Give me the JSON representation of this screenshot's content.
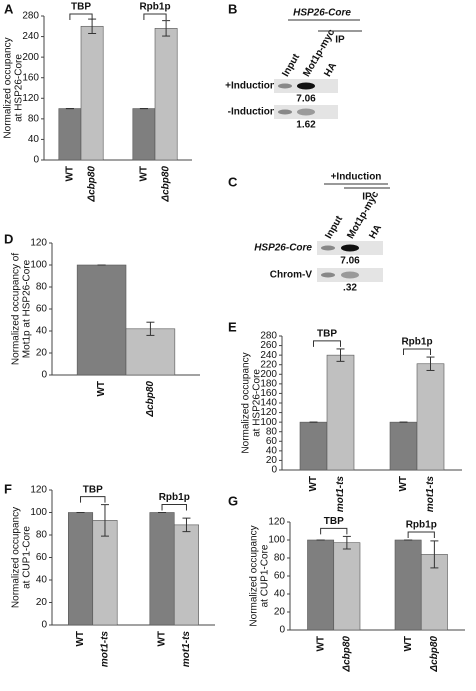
{
  "chart_data": [
    {
      "type": "bar",
      "panel": "A",
      "y_label": [
        "Normalized occupancy",
        "at HSP26-Core"
      ],
      "ylim": [
        0,
        280
      ],
      "yticks": [
        0,
        40,
        80,
        120,
        160,
        200,
        240,
        280
      ],
      "groups": [
        "TBP",
        "Rpb1p"
      ],
      "series": [
        {
          "name": "WT",
          "color": "#7f7f7f",
          "values": [
            100,
            100
          ],
          "errors": [
            0,
            0
          ]
        },
        {
          "name": "Δcbp80",
          "color": "#c0c0c0",
          "values": [
            260,
            256
          ],
          "errors": [
            14,
            15
          ]
        }
      ]
    },
    {
      "type": "bar",
      "panel": "D",
      "y_label": [
        "Normalized occupancy of",
        "Mot1p at HSP26-Core"
      ],
      "ylim": [
        0,
        120
      ],
      "yticks": [
        0,
        20,
        40,
        60,
        80,
        100,
        120
      ],
      "series": [
        {
          "name": "WT",
          "color": "#7f7f7f",
          "values": [
            100
          ],
          "errors": [
            0
          ]
        },
        {
          "name": "Δcbp80",
          "color": "#c0c0c0",
          "values": [
            42
          ],
          "errors": [
            6
          ]
        }
      ]
    },
    {
      "type": "bar",
      "panel": "E",
      "y_label": [
        "Normalized occupancy",
        "at HSP26-Core"
      ],
      "ylim": [
        0,
        280
      ],
      "yticks": [
        0,
        20,
        40,
        60,
        80,
        100,
        120,
        140,
        160,
        180,
        200,
        220,
        240,
        260,
        280
      ],
      "groups": [
        "TBP",
        "Rpb1p"
      ],
      "series": [
        {
          "name": "WT",
          "color": "#7f7f7f",
          "values": [
            100,
            100
          ],
          "errors": [
            0,
            0
          ]
        },
        {
          "name": "mot1-ts",
          "color": "#c0c0c0",
          "values": [
            240,
            222
          ],
          "errors": [
            13,
            14
          ]
        }
      ]
    },
    {
      "type": "bar",
      "panel": "F",
      "y_label": [
        "Normalized occupancy",
        "at CUP1-Core"
      ],
      "ylim": [
        0,
        120
      ],
      "yticks": [
        0,
        20,
        40,
        60,
        80,
        100,
        120
      ],
      "groups": [
        "TBP",
        "Rpb1p"
      ],
      "series": [
        {
          "name": "WT",
          "color": "#7f7f7f",
          "values": [
            100,
            100
          ],
          "errors": [
            0,
            0
          ]
        },
        {
          "name": "mot1-ts",
          "color": "#c0c0c0",
          "values": [
            93,
            89
          ],
          "errors": [
            14,
            6
          ]
        }
      ]
    },
    {
      "type": "bar",
      "panel": "G",
      "y_label": [
        "Normalized occupancy",
        "at CUP1-Core"
      ],
      "ylim": [
        0,
        120
      ],
      "yticks": [
        0,
        20,
        40,
        60,
        80,
        100,
        120
      ],
      "groups": [
        "TBP",
        "Rpb1p"
      ],
      "series": [
        {
          "name": "WT",
          "color": "#7f7f7f",
          "values": [
            100,
            100
          ],
          "errors": [
            0,
            0
          ]
        },
        {
          "name": "Δcbp80",
          "color": "#c0c0c0",
          "values": [
            97,
            84
          ],
          "errors": [
            7,
            15
          ]
        }
      ]
    }
  ],
  "blots": [
    {
      "panel": "B",
      "title": "HSP26-Core",
      "ip": "IP",
      "lanes": [
        "Input",
        "Mot1p-myc",
        "HA"
      ],
      "rows": [
        {
          "label": "+Induction",
          "value": "7.06"
        },
        {
          "label": "-Induction",
          "value": "1.62"
        }
      ]
    },
    {
      "panel": "C",
      "title": "+Induction",
      "ip": "IP",
      "lanes": [
        "Input",
        "Mot1p-myc",
        "HA"
      ],
      "rows": [
        {
          "label": "HSP26-Core",
          "value": "7.06"
        },
        {
          "label": "Chrom-V",
          "value": ".32"
        }
      ]
    }
  ]
}
